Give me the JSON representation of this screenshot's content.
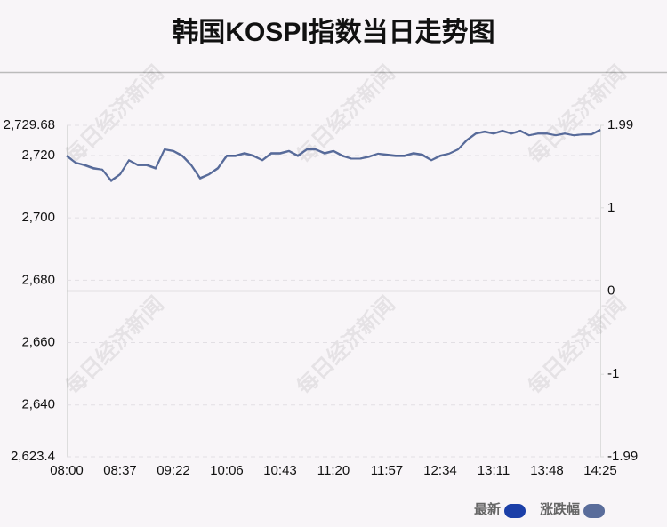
{
  "chart_data": {
    "type": "line",
    "title": "韩国KOSPI指数当日走势图",
    "watermark": "每日经济新闻",
    "categories": [
      "08:00",
      null,
      null,
      null,
      null,
      null,
      "08:37",
      null,
      null,
      null,
      null,
      null,
      "09:22",
      null,
      null,
      null,
      null,
      null,
      "10:06",
      null,
      null,
      null,
      null,
      null,
      "10:43",
      null,
      null,
      null,
      null,
      null,
      "11:20",
      null,
      null,
      null,
      null,
      null,
      "11:57",
      null,
      null,
      null,
      null,
      null,
      "12:34",
      null,
      null,
      null,
      null,
      null,
      "13:11",
      null,
      null,
      null,
      null,
      null,
      "13:48",
      null,
      null,
      null,
      null,
      null,
      "14:25"
    ],
    "series": [
      {
        "name": "最新",
        "color": "#1b3fa8",
        "values": [
          2720,
          2717.7,
          2717,
          2716,
          2715.5,
          2712,
          2714,
          2718.5,
          2717,
          2717,
          2716,
          2722,
          2721.5,
          2720,
          2717,
          2712.8,
          2714,
          2716,
          2720,
          2720,
          2720.8,
          2720,
          2718.5,
          2720.8,
          2720.8,
          2721.5,
          2720,
          2722,
          2722,
          2720.8,
          2721.5,
          2720,
          2719,
          2719,
          2719.7,
          2720.6,
          2720.3,
          2720,
          2720,
          2720.8,
          2720.3,
          2718.5,
          2720,
          2720.6,
          2722,
          2725,
          2727.1,
          2727.7,
          2727.1,
          2728,
          2727.1,
          2728,
          2726.5,
          2727.1,
          2727.1,
          2726.5,
          2727.1,
          2726.5,
          2726.8,
          2726.8,
          2728.3
        ]
      },
      {
        "name": "涨跌幅",
        "color": "#5a6d9b",
        "axis": "y2",
        "values": [
          1.62,
          1.54,
          1.51,
          1.47,
          1.46,
          1.32,
          1.4,
          1.57,
          1.51,
          1.51,
          1.47,
          1.7,
          1.68,
          1.62,
          1.51,
          1.35,
          1.4,
          1.47,
          1.62,
          1.62,
          1.65,
          1.62,
          1.57,
          1.65,
          1.65,
          1.68,
          1.62,
          1.7,
          1.7,
          1.65,
          1.68,
          1.62,
          1.59,
          1.59,
          1.61,
          1.65,
          1.63,
          1.62,
          1.62,
          1.65,
          1.63,
          1.57,
          1.62,
          1.65,
          1.7,
          1.81,
          1.89,
          1.91,
          1.89,
          1.92,
          1.89,
          1.92,
          1.87,
          1.89,
          1.89,
          1.87,
          1.89,
          1.87,
          1.88,
          1.88,
          1.93
        ]
      }
    ],
    "ylim": [
      2623.4,
      2729.68
    ],
    "yticks": [
      {
        "value": 2623.4,
        "label": "2,623.4"
      },
      {
        "value": 2640,
        "label": "2,640"
      },
      {
        "value": 2660,
        "label": "2,660"
      },
      {
        "value": 2680,
        "label": "2,680"
      },
      {
        "value": 2700,
        "label": "2,700"
      },
      {
        "value": 2720,
        "label": "2,720"
      },
      {
        "value": 2729.68,
        "label": "2,729.68"
      }
    ],
    "y2lim": [
      -1.99,
      1.99
    ],
    "y2ticks": [
      -1.99,
      -1,
      0,
      1,
      1.99
    ],
    "grid": true,
    "legend": "bottom-right"
  }
}
